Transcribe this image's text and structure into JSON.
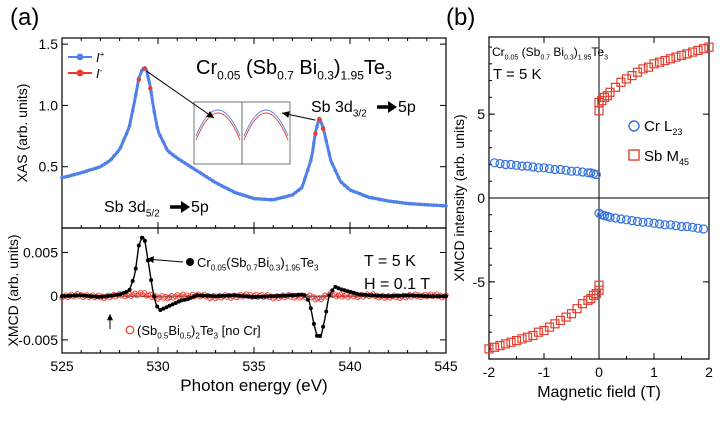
{
  "chart_data": [
    {
      "id": "a-top",
      "panel_label": "(a)",
      "type": "line",
      "title": "Cr0.05(Sb0.7Bi0.3)1.95Te3",
      "title_parts": [
        {
          "t": "Cr",
          "s": "base"
        },
        {
          "t": "0.05",
          "s": "sub"
        },
        {
          "t": " (Sb",
          "s": "base"
        },
        {
          "t": "0.7",
          "s": "sub"
        },
        {
          "t": " Bi",
          "s": "base"
        },
        {
          "t": "0.3",
          "s": "sub"
        },
        {
          "t": ")",
          "s": "base"
        },
        {
          "t": "1.95",
          "s": "sub"
        },
        {
          "t": "Te",
          "s": "base"
        },
        {
          "t": "3",
          "s": "sub"
        }
      ],
      "ylabel": "XAS (arb. units)",
      "xlim": [
        525,
        545
      ],
      "ylim": [
        0.0,
        1.55
      ],
      "yticks": [
        0.5,
        1.0,
        1.5
      ],
      "ytick_labels": [
        "0.5",
        "1.0",
        "1.5"
      ],
      "legend": {
        "placement": "top-left",
        "entries": [
          {
            "label": "I",
            "sup": "+",
            "color": "#4f81e8"
          },
          {
            "label": "I",
            "sup": "-",
            "color": "#ec3b2f"
          }
        ]
      },
      "annotations": [
        {
          "text": "Sb 3d",
          "sub": "5/2",
          "arrow_text": "5p"
        },
        {
          "text": "Sb 3d",
          "sub": "3/2",
          "arrow_text": "5p"
        }
      ],
      "series": [
        {
          "name": "I+",
          "color": "#4f81e8",
          "x": [
            525,
            526,
            527,
            527.5,
            528,
            528.5,
            528.8,
            529.0,
            529.2,
            529.3,
            529.4,
            529.6,
            529.8,
            530.0,
            530.5,
            531,
            531.5,
            532,
            532.5,
            533,
            534,
            535,
            536,
            537,
            537.5,
            538.0,
            538.2,
            538.4,
            538.6,
            539.0,
            539.5,
            540,
            541,
            542,
            543,
            544,
            545
          ],
          "y": [
            0.41,
            0.45,
            0.5,
            0.55,
            0.64,
            0.82,
            1.05,
            1.22,
            1.3,
            1.31,
            1.29,
            1.15,
            0.95,
            0.79,
            0.63,
            0.57,
            0.52,
            0.47,
            0.42,
            0.37,
            0.29,
            0.24,
            0.23,
            0.27,
            0.33,
            0.57,
            0.78,
            0.9,
            0.82,
            0.55,
            0.38,
            0.31,
            0.25,
            0.22,
            0.2,
            0.19,
            0.18
          ]
        },
        {
          "name": "I-",
          "color": "#ec3b2f",
          "x": [
            529.0,
            529.3,
            529.6,
            538.2,
            538.4,
            538.6
          ],
          "y": [
            1.21,
            1.3,
            1.14,
            0.77,
            0.89,
            0.81
          ]
        }
      ]
    },
    {
      "id": "a-bottom",
      "type": "line",
      "xlabel": "Photon energy (eV)",
      "ylabel": "XMCD (arb. units)",
      "xlim": [
        525,
        545
      ],
      "ylim": [
        -0.0065,
        0.0078
      ],
      "xticks": [
        525,
        530,
        535,
        540,
        545
      ],
      "yticks": [
        -0.005,
        0,
        0.005
      ],
      "ytick_labels": [
        "-0.005",
        "0",
        "0.005"
      ],
      "conditions": [
        "T = 5 K",
        "H = 0.1 T"
      ],
      "series": [
        {
          "name": "Cr0.05(Sb0.7Bi0.3)1.95Te3",
          "marker": "filled-circle",
          "color": "#000000",
          "label_parts": [
            {
              "t": "Cr",
              "s": "base"
            },
            {
              "t": "0.05",
              "s": "sub"
            },
            {
              "t": "(Sb",
              "s": "base"
            },
            {
              "t": "0.7",
              "s": "sub"
            },
            {
              "t": "Bi",
              "s": "base"
            },
            {
              "t": "0.3",
              "s": "sub"
            },
            {
              "t": ")",
              "s": "base"
            },
            {
              "t": "1.95",
              "s": "sub"
            },
            {
              "t": "Te",
              "s": "base"
            },
            {
              "t": "3",
              "s": "sub"
            }
          ],
          "x": [
            525,
            526,
            527,
            528,
            528.5,
            528.8,
            529.0,
            529.2,
            529.3,
            529.5,
            529.7,
            529.9,
            530.1,
            530.4,
            530.8,
            531.2,
            531.6,
            532,
            533,
            534,
            535,
            536,
            537,
            537.6,
            537.9,
            538.1,
            538.3,
            538.5,
            538.7,
            538.9,
            539.2,
            539.5,
            540,
            540.5,
            541,
            542,
            543,
            544,
            545
          ],
          "y": [
            0,
            0.0001,
            -0.0001,
            0.0002,
            0.0006,
            0.0025,
            0.0058,
            0.0069,
            0.0066,
            0.0038,
            0.001,
            -0.001,
            -0.0016,
            -0.0013,
            -0.0009,
            -0.0005,
            -0.0003,
            0.0001,
            0,
            0.0001,
            -0.0001,
            0,
            0.0001,
            0.0002,
            -0.0007,
            -0.003,
            -0.0047,
            -0.0045,
            -0.0025,
            0.0,
            0.0011,
            0.0008,
            0.0005,
            0.0002,
            0.0001,
            0,
            0.0001,
            0,
            0
          ]
        },
        {
          "name": "(Sb0.5Bi0.5)2Te3 [no Cr]",
          "marker": "open-circle",
          "color": "#ec3b2f",
          "label_parts": [
            {
              "t": "(Sb",
              "s": "base"
            },
            {
              "t": "0.5",
              "s": "sub"
            },
            {
              "t": "Bi",
              "s": "base"
            },
            {
              "t": "0.5",
              "s": "sub"
            },
            {
              "t": ")",
              "s": "base"
            },
            {
              "t": "2",
              "s": "sub"
            },
            {
              "t": "Te",
              "s": "base"
            },
            {
              "t": "3",
              "s": "sub"
            },
            {
              "t": " [no Cr]",
              "s": "base"
            }
          ],
          "x": [
            525,
            526,
            527,
            528,
            529,
            529.3,
            530,
            531,
            532,
            533,
            534,
            535,
            536,
            537,
            538,
            538.4,
            539,
            540,
            541,
            542,
            543,
            544,
            545
          ],
          "y": [
            0,
            0.0001,
            -0.0001,
            0.0001,
            0.0002,
            0.0003,
            -0.0002,
            0,
            0.0001,
            -0.0001,
            0,
            0.0001,
            -0.0001,
            0,
            -0.0001,
            -0.0003,
            0.0002,
            0,
            0.0001,
            -0.0001,
            0,
            0.0001,
            0
          ]
        }
      ]
    },
    {
      "id": "b",
      "panel_label": "(b)",
      "type": "scatter",
      "title": "Cr0.05(Sb0.7Bi0.3)1.95Te3",
      "title_parts": [
        {
          "t": "Cr",
          "s": "base"
        },
        {
          "t": "0.05",
          "s": "sub"
        },
        {
          "t": " (Sb",
          "s": "base"
        },
        {
          "t": "0.7",
          "s": "sub"
        },
        {
          "t": " Bi",
          "s": "base"
        },
        {
          "t": "0.3",
          "s": "sub"
        },
        {
          "t": ")",
          "s": "base"
        },
        {
          "t": "1.95",
          "s": "sub"
        },
        {
          "t": "Te",
          "s": "base"
        },
        {
          "t": "3",
          "s": "sub"
        }
      ],
      "condition": "T = 5 K",
      "xlabel": "Magnetic field (T)",
      "ylabel": "XMCD intensity (arb. units)",
      "xlim": [
        -2,
        2
      ],
      "ylim": [
        -9.6,
        9.6
      ],
      "xticks": [
        -2,
        -1,
        0,
        1,
        2
      ],
      "yticks": [
        -5,
        0,
        5
      ],
      "legend": {
        "placement": "middle-right"
      },
      "series": [
        {
          "name": "Cr L23",
          "marker": "open-circle",
          "color": "#2f6fe0",
          "label_parts": [
            {
              "t": "Cr L",
              "s": "base"
            },
            {
              "t": "23",
              "s": "sub"
            }
          ],
          "x": [
            -1.9,
            -1.8,
            -1.7,
            -1.6,
            -1.5,
            -1.4,
            -1.3,
            -1.2,
            -1.1,
            -1.0,
            -0.9,
            -0.8,
            -0.7,
            -0.6,
            -0.5,
            -0.4,
            -0.3,
            -0.2,
            -0.15,
            -0.1,
            -0.05,
            0.0,
            0.05,
            0.1,
            0.15,
            0.2,
            0.3,
            0.4,
            0.5,
            0.6,
            0.7,
            0.8,
            0.9,
            1.0,
            1.1,
            1.2,
            1.3,
            1.4,
            1.5,
            1.6,
            1.7,
            1.8,
            1.9
          ],
          "y": [
            2.1,
            2.05,
            2.0,
            2.0,
            1.95,
            1.9,
            1.9,
            1.85,
            1.8,
            1.8,
            1.75,
            1.7,
            1.7,
            1.65,
            1.6,
            1.6,
            1.55,
            1.5,
            1.5,
            1.45,
            1.4,
            -0.9,
            -1.0,
            -1.05,
            -1.1,
            -1.15,
            -1.2,
            -1.25,
            -1.3,
            -1.35,
            -1.4,
            -1.45,
            -1.45,
            -1.5,
            -1.55,
            -1.6,
            -1.6,
            -1.65,
            -1.7,
            -1.7,
            -1.75,
            -1.8,
            -1.85
          ]
        },
        {
          "name": "Sb M45",
          "marker": "open-square",
          "color": "#e0402f",
          "label_parts": [
            {
              "t": "Sb M",
              "s": "base"
            },
            {
              "t": "45",
              "s": "sub"
            }
          ],
          "x": [
            0.0,
            0.0,
            0.05,
            0.1,
            0.15,
            0.2,
            0.3,
            0.4,
            0.5,
            0.6,
            0.7,
            0.8,
            0.9,
            1.0,
            1.1,
            1.2,
            1.3,
            1.4,
            1.5,
            1.6,
            1.7,
            1.8,
            1.9,
            2.0,
            -2.0,
            -1.9,
            -1.8,
            -1.7,
            -1.6,
            -1.5,
            -1.4,
            -1.3,
            -1.2,
            -1.1,
            -1.0,
            -0.9,
            -0.8,
            -0.7,
            -0.6,
            -0.5,
            -0.4,
            -0.3,
            -0.2,
            -0.15,
            -0.1,
            -0.05,
            0.0,
            0.0
          ],
          "y": [
            5.2,
            5.7,
            5.8,
            6.0,
            6.1,
            6.3,
            6.6,
            6.9,
            7.1,
            7.3,
            7.5,
            7.7,
            7.8,
            8.0,
            8.1,
            8.2,
            8.3,
            8.4,
            8.5,
            8.6,
            8.7,
            8.8,
            8.9,
            9.0,
            -9.0,
            -8.9,
            -8.8,
            -8.7,
            -8.6,
            -8.5,
            -8.4,
            -8.3,
            -8.2,
            -8.0,
            -7.9,
            -7.7,
            -7.5,
            -7.3,
            -7.1,
            -6.9,
            -6.6,
            -6.3,
            -6.1,
            -6.0,
            -5.8,
            -5.7,
            -5.5,
            -5.2
          ]
        }
      ]
    }
  ]
}
